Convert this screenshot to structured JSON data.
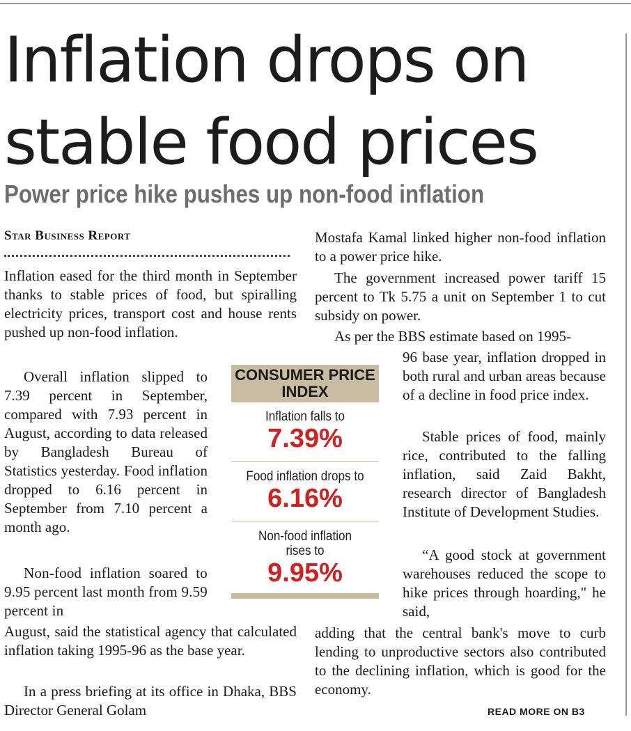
{
  "article": {
    "headline": "Inflation drops on stable food prices",
    "subheadline": "Power price hike pushes up non-food inflation",
    "byline": "Star Business Report",
    "left_column": {
      "p1": "Inflation eased for the third month in September thanks to stable prices of food, but spiralling electricity prices, transport cost and house rents pushed up non-food inflation.",
      "p2": "Overall inflation slipped to 7.39 percent in September, compared with 7.93 percent in August, according to data released by Bangladesh Bureau of Statistics yesterday. Food inflation dropped to 6.16 percent in September from 7.10 percent a month ago.",
      "p3": "Non-food inflation soared to 9.95 percent last month from 9.59 percent in",
      "p3_cont": "August, said the statistical agency that calculated inflation taking 1995-96 as the base year.",
      "p4": "In a press briefing at its office in Dhaka, BBS Director General Golam"
    },
    "right_column": {
      "p1": "Mostafa Kamal linked higher non-food inflation to a power price hike.",
      "p2": "The government increased power tariff 15 percent to Tk 5.75 a unit on September 1 to cut subsidy on power.",
      "p3_lead": "As per the BBS estimate based on 1995-",
      "p3": "96 base year, inflation dropped in both rural and urban areas because of a decline in food price index.",
      "p4": "Stable prices of food, mainly rice, contributed to the falling inflation, said Zaid Bakht, research director of Bangladesh Institute of Development Studies.",
      "p5": "“A good stock at government warehouses reduced the scope to hike prices through hoarding,\" he said,",
      "p5_cont": "adding that the central bank's move to curb lending to unproductive sectors also contributed to the declining inflation, which is good for the economy."
    },
    "read_more": "READ MORE ON B3"
  },
  "cpi_box": {
    "title": "CONSUMER PRICE INDEX",
    "items": [
      {
        "label": "Inflation falls to",
        "value": "7.39%"
      },
      {
        "label": "Food inflation drops to",
        "value": "6.16%"
      },
      {
        "label": "Non-food inflation rises to",
        "value": "9.95%"
      }
    ]
  },
  "colors": {
    "highlight_red": "#cc2222",
    "box_tan": "#c8bda3",
    "subhead_gray": "#6d6d6d"
  }
}
